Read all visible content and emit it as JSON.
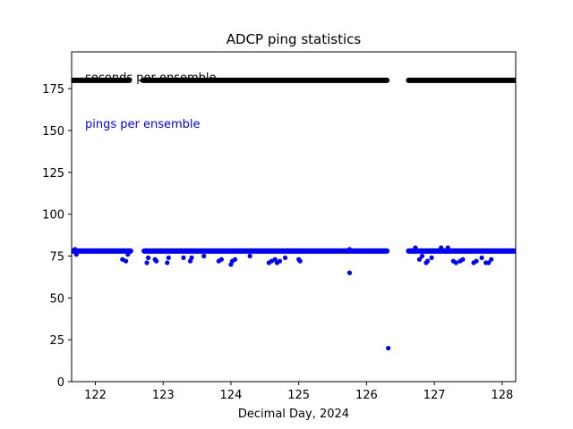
{
  "chart_data": {
    "type": "scatter",
    "title": "ADCP  ping statistics",
    "xlabel": "Decimal Day, 2024",
    "ylabel": "",
    "xlim": [
      121.65,
      128.2
    ],
    "ylim": [
      0,
      197
    ],
    "xticks": [
      122,
      123,
      124,
      125,
      126,
      127,
      128
    ],
    "yticks": [
      0,
      25,
      50,
      75,
      100,
      125,
      150,
      175
    ],
    "grid": false,
    "annotations": [
      {
        "text": "seconds per ensemble",
        "color": "#000000"
      },
      {
        "text": "pings per ensemble",
        "color": "#0000ff"
      }
    ],
    "series": [
      {
        "color": "#000000",
        "segments": [
          [
            121.65,
            122.5,
            180
          ],
          [
            122.7,
            126.3,
            180
          ],
          [
            126.62,
            128.2,
            180
          ]
        ]
      },
      {
        "color": "#0000ff",
        "segments": [
          [
            121.65,
            122.52,
            78
          ],
          [
            122.72,
            126.3,
            78
          ],
          [
            126.62,
            128.2,
            78
          ]
        ],
        "points": [
          [
            121.7,
            79
          ],
          [
            121.72,
            76
          ],
          [
            122.4,
            73
          ],
          [
            122.45,
            72
          ],
          [
            122.48,
            76
          ],
          [
            122.76,
            71
          ],
          [
            122.78,
            74
          ],
          [
            122.88,
            73
          ],
          [
            122.9,
            72
          ],
          [
            123.06,
            71
          ],
          [
            123.08,
            74
          ],
          [
            123.3,
            74
          ],
          [
            123.4,
            72
          ],
          [
            123.42,
            74
          ],
          [
            123.6,
            75
          ],
          [
            123.82,
            72
          ],
          [
            123.86,
            73
          ],
          [
            124.0,
            70
          ],
          [
            124.02,
            72
          ],
          [
            124.06,
            73
          ],
          [
            124.28,
            75
          ],
          [
            124.56,
            71
          ],
          [
            124.6,
            72
          ],
          [
            124.65,
            73
          ],
          [
            124.68,
            71
          ],
          [
            124.72,
            72
          ],
          [
            124.8,
            74
          ],
          [
            125.0,
            73
          ],
          [
            125.02,
            72
          ],
          [
            125.75,
            79
          ],
          [
            125.75,
            65
          ],
          [
            126.32,
            20
          ],
          [
            126.78,
            73
          ],
          [
            126.82,
            75
          ],
          [
            126.88,
            71
          ],
          [
            126.9,
            72
          ],
          [
            126.96,
            74
          ],
          [
            127.28,
            72
          ],
          [
            127.32,
            71
          ],
          [
            127.38,
            72
          ],
          [
            127.42,
            73
          ],
          [
            127.58,
            71
          ],
          [
            127.62,
            72
          ],
          [
            127.7,
            74
          ],
          [
            127.76,
            71
          ],
          [
            127.8,
            71
          ],
          [
            127.84,
            73
          ],
          [
            127.1,
            80
          ],
          [
            127.2,
            80
          ],
          [
            126.72,
            80
          ]
        ]
      }
    ]
  }
}
